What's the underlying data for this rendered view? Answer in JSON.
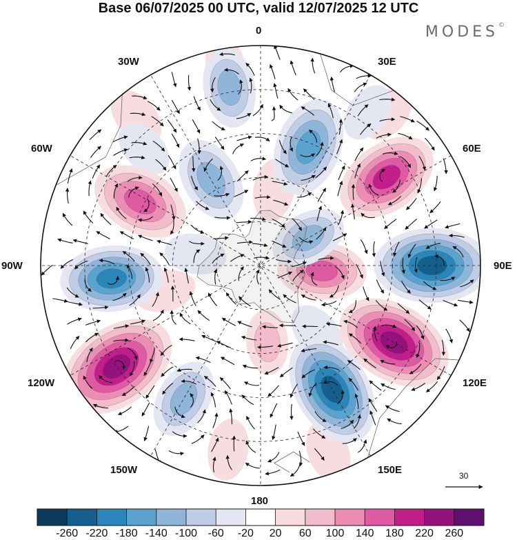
{
  "title": "Base 06/07/2025 00 UTC, valid 12/07/2025 12 UTC",
  "brand": "MODES",
  "brand_mark": "©",
  "map": {
    "projection": "south polar stereographic",
    "longitude_labels": {
      "lon_0": "0",
      "lon_30e": "30E",
      "lon_60e": "60E",
      "lon_90e": "90E",
      "lon_120e": "120E",
      "lon_150e": "150E",
      "lon_180": "180",
      "lon_150w": "150W",
      "lon_120w": "120W",
      "lon_90w": "90W",
      "lon_60w": "60W",
      "lon_30w": "30W"
    },
    "graticule": "dashed",
    "vector_field": "wind arrows",
    "features": [
      {
        "kind": "high",
        "sign": 1,
        "lon": -125,
        "rf": 0.8,
        "amp": 250
      },
      {
        "kind": "high",
        "sign": 1,
        "lon": 120,
        "rf": 0.7,
        "amp": 235
      },
      {
        "kind": "high",
        "sign": 1,
        "lon": 55,
        "rf": 0.7,
        "amp": 190
      },
      {
        "kind": "high",
        "sign": 1,
        "lon": -62,
        "rf": 0.62,
        "amp": 170
      },
      {
        "kind": "high",
        "sign": 1,
        "lon": 95,
        "rf": 0.28,
        "amp": 140
      },
      {
        "kind": "low",
        "sign": -1,
        "lon": 90,
        "rf": 0.78,
        "amp": 230
      },
      {
        "kind": "low",
        "sign": -1,
        "lon": 150,
        "rf": 0.65,
        "amp": 225
      },
      {
        "kind": "low",
        "sign": -1,
        "lon": -95,
        "rf": 0.68,
        "amp": 185
      },
      {
        "kind": "low",
        "sign": -1,
        "lon": 22,
        "rf": 0.58,
        "amp": 175
      },
      {
        "kind": "low",
        "sign": -1,
        "lon": -30,
        "rf": 0.45,
        "amp": 130
      },
      {
        "kind": "low",
        "sign": -1,
        "lon": -10,
        "rf": 0.82,
        "amp": 110
      },
      {
        "kind": "low",
        "sign": -1,
        "lon": -150,
        "rf": 0.7,
        "amp": 110
      },
      {
        "kind": "low",
        "sign": -1,
        "lon": 60,
        "rf": 0.25,
        "amp": 100
      }
    ]
  },
  "colorbar": {
    "colors": [
      "#0c3a5a",
      "#155f8e",
      "#2a86b8",
      "#5ba3cf",
      "#8fb6d8",
      "#c0cde6",
      "#e4e6f2",
      "#ffffff",
      "#f7dde0",
      "#f2bccc",
      "#ec8db4",
      "#de5aa2",
      "#c21e89",
      "#95127e",
      "#5e0f70"
    ],
    "tick_labels": [
      "-260",
      "-220",
      "-180",
      "-140",
      "-100",
      "-60",
      "-20",
      "20",
      "60",
      "100",
      "140",
      "180",
      "220",
      "260"
    ]
  },
  "reference_vector": {
    "value": "30"
  }
}
